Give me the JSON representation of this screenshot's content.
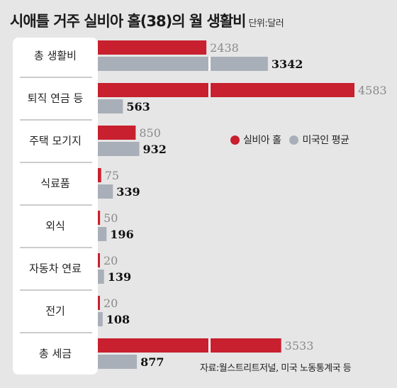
{
  "header": {
    "title": "시애틀 거주 실비아 홀(38)의 월 생활비",
    "unit": "단위:달러"
  },
  "legend": {
    "items": [
      "실비아 홀",
      "미국인 평균"
    ]
  },
  "source": "자료:월스트리트저널, 미국 노동통계국 등",
  "colors": {
    "series1": "#c8202e",
    "series2": "#a9afb8",
    "background": "#e6e6e6",
    "panel": "#ffffff",
    "separator": "#9a9a9a"
  },
  "chart_data": {
    "type": "bar",
    "orientation": "horizontal",
    "categories": [
      "총 생활비",
      "퇴직 연금 등",
      "주택 모기지",
      "식료품",
      "외식",
      "자동차 연료",
      "전기",
      "총 세금"
    ],
    "series": [
      {
        "name": "실비아 홀",
        "values": [
          2438,
          4583,
          850,
          75,
          50,
          20,
          20,
          3533
        ]
      },
      {
        "name": "미국인 평균",
        "values": [
          3342,
          563,
          932,
          339,
          196,
          139,
          108,
          877
        ]
      }
    ],
    "axis_break_at": 2500,
    "grid": false,
    "legend_position": "right-middle"
  }
}
